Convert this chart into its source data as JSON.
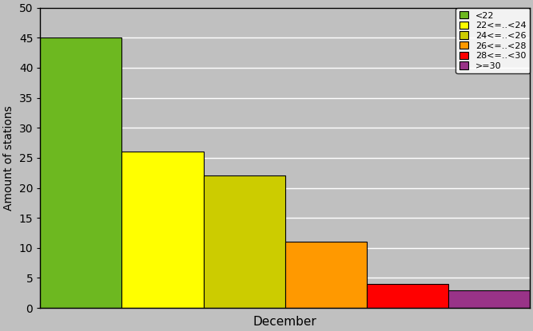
{
  "xlabel": "December",
  "ylabel": "Amount of stations",
  "categories": [
    "<22",
    "22<=..<24",
    "24<=..<26",
    "26<=..<28",
    "28<=..<30",
    ">=30"
  ],
  "values": [
    45,
    26,
    22,
    11,
    4,
    3
  ],
  "colors": [
    "#6db820",
    "#ffff00",
    "#cccc00",
    "#ff9900",
    "#ff0000",
    "#993388"
  ],
  "ylim": [
    0,
    50
  ],
  "yticks": [
    0,
    5,
    10,
    15,
    20,
    25,
    30,
    35,
    40,
    45,
    50
  ],
  "background_color": "#c0c0c0",
  "legend_colors": [
    "#6db820",
    "#ffff00",
    "#cccc00",
    "#ff9900",
    "#ff0000",
    "#993388"
  ]
}
